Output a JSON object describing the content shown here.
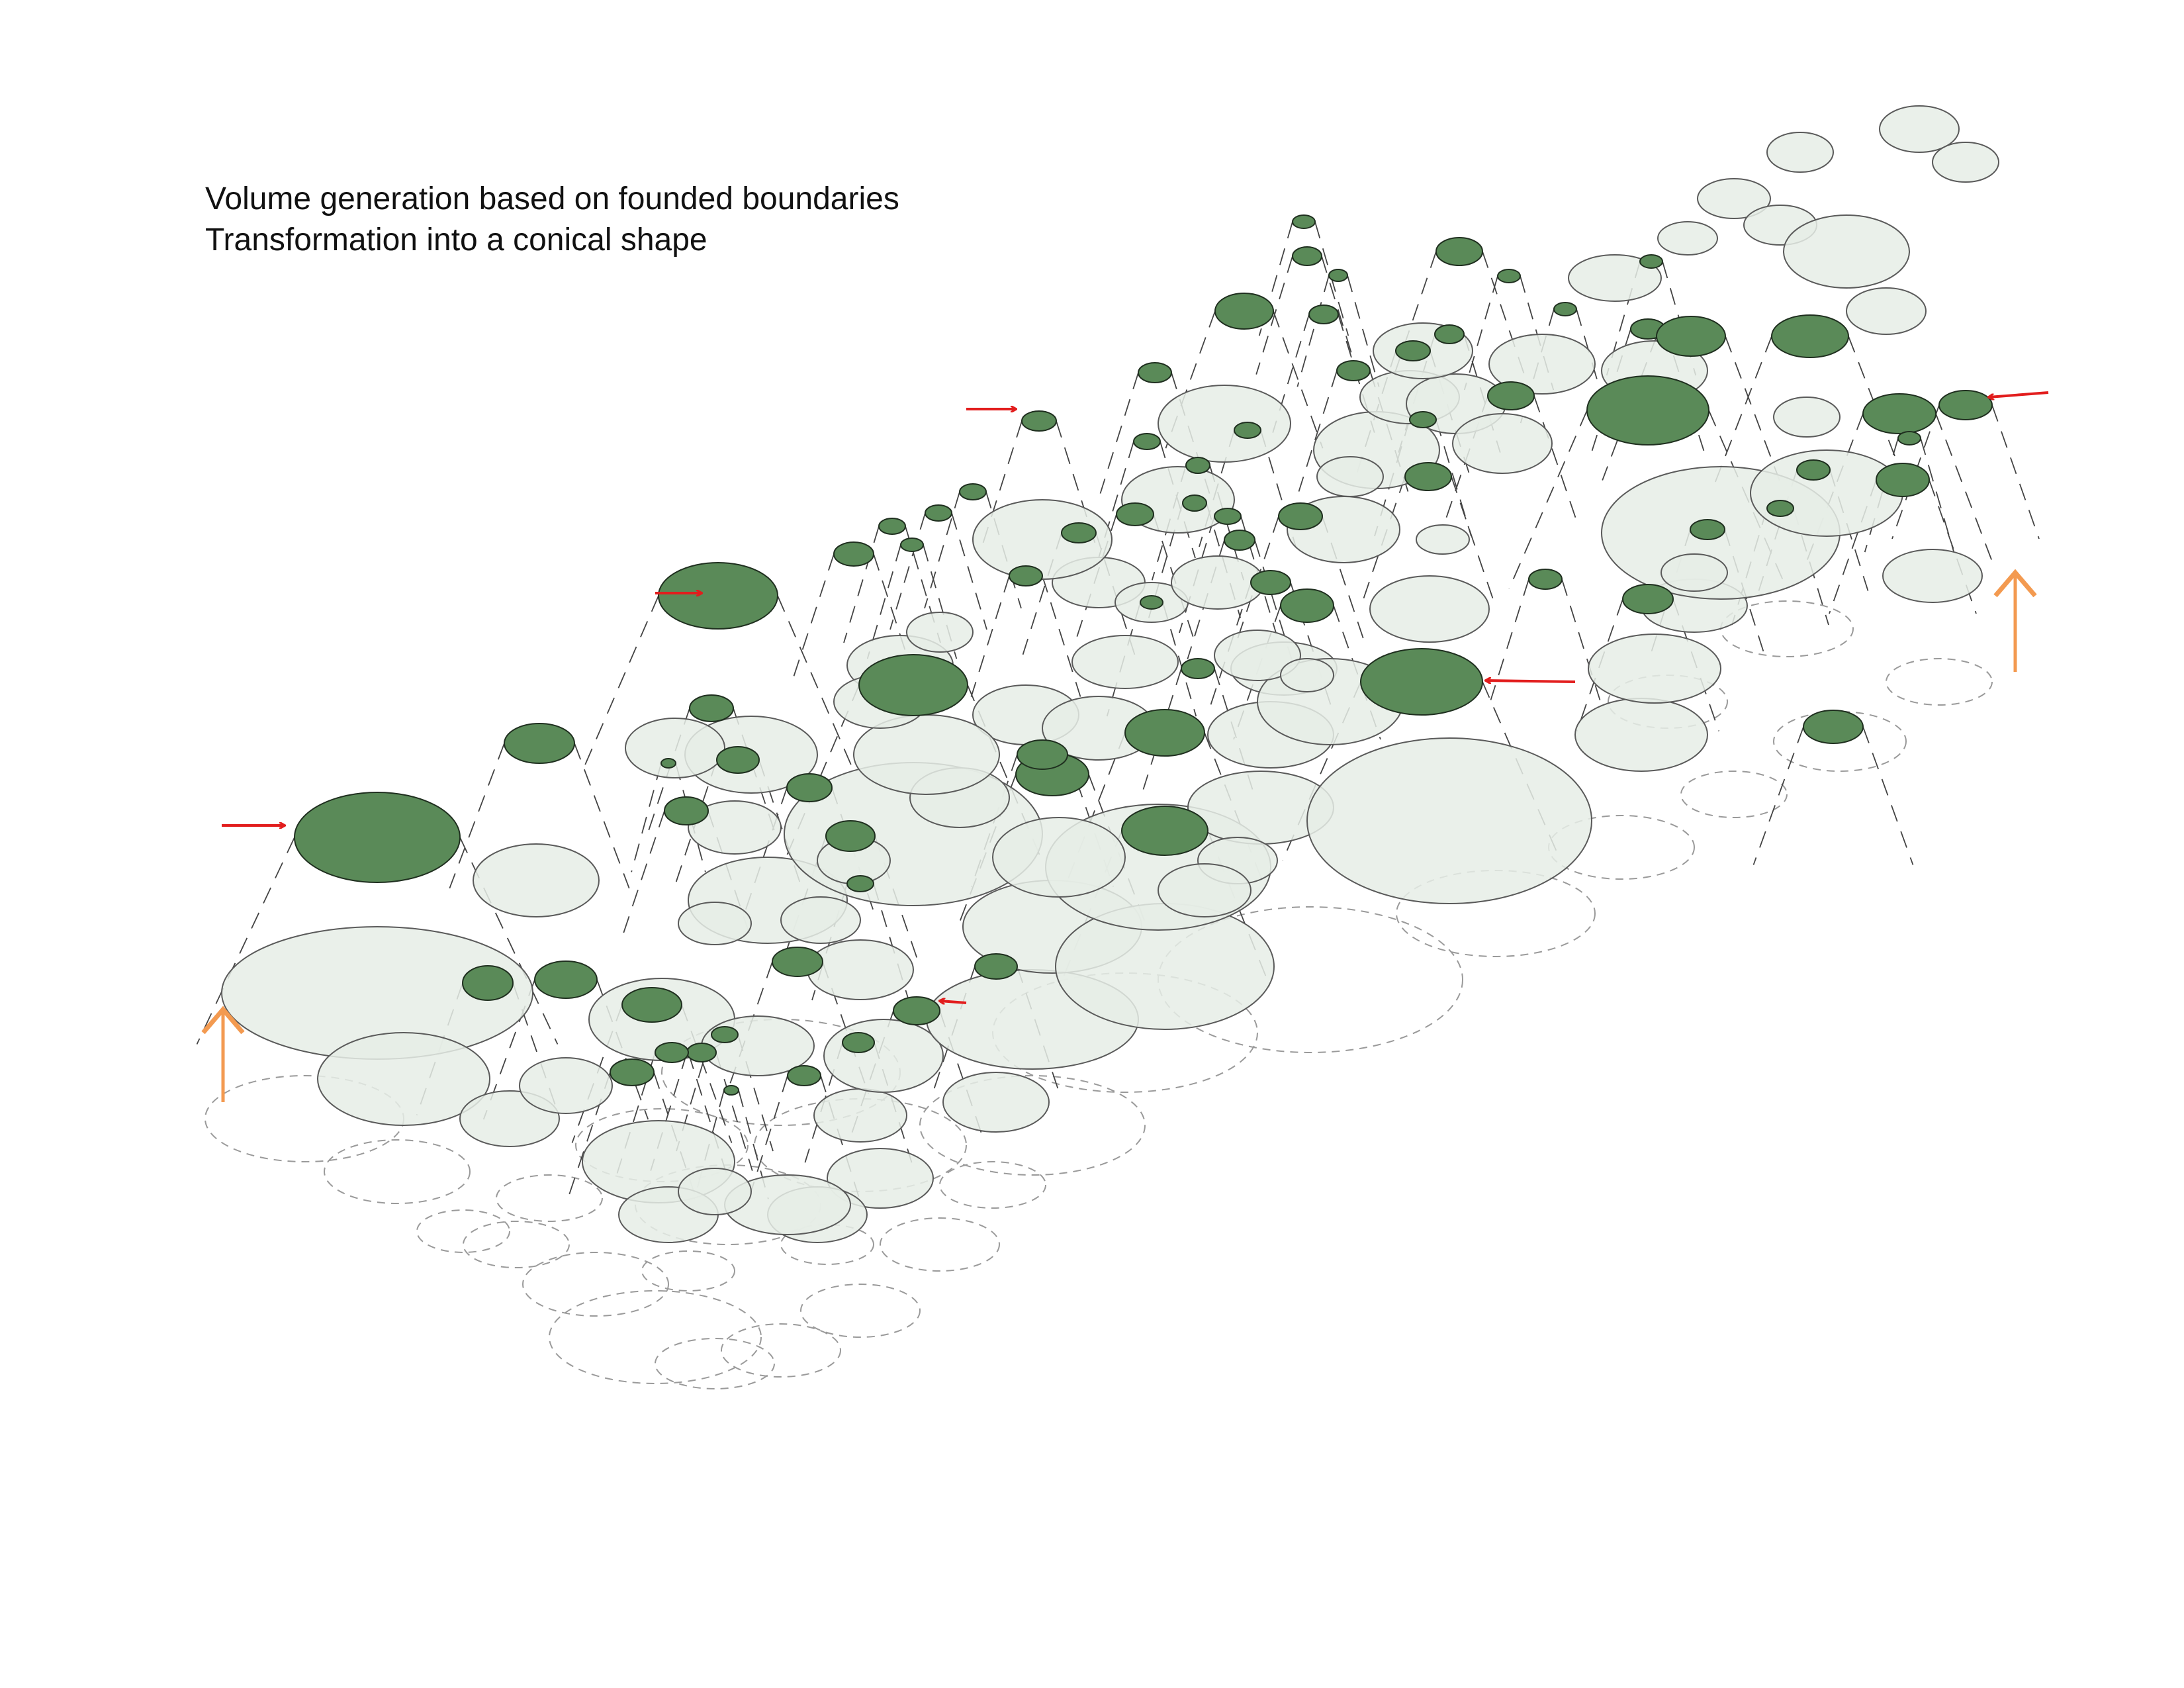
{
  "caption": {
    "line1": "Volume generation based on founded boundaries",
    "line2": "Transformation into a conical shape"
  },
  "colors": {
    "top_fill": "#5a8a58",
    "top_stroke": "#1f2f1f",
    "mid_fill": "#e6ede6",
    "mid_stroke": "#5a5a5a",
    "base_stroke": "#9a9a9a",
    "cone_line": "#444444",
    "arrow_red": "#e21d1d",
    "arrow_orange": "#f39a50"
  },
  "icons": {
    "red_arrows": "arrow-indicator-icon",
    "orange_arrows": "up-arrow-icon"
  }
}
